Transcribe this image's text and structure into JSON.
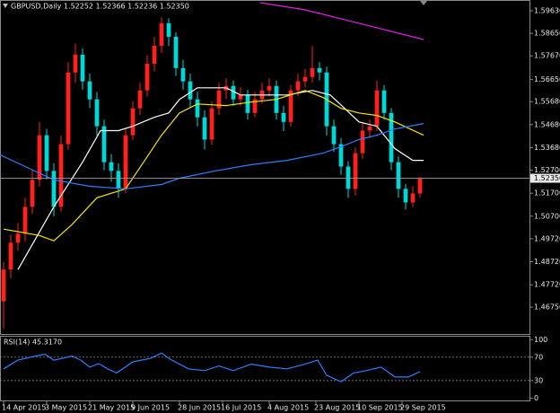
{
  "chart_data": [
    {
      "type": "candlestick",
      "title": "GBPUSD,Daily  1.52252 1.52366 1.52236 1.52350",
      "colors": {
        "up": "#ff2020",
        "down": "#00d8d8"
      },
      "open": [
        1.47,
        1.4838,
        1.4955,
        1.4994,
        1.5111,
        1.5228,
        1.5422,
        1.5267,
        1.5111,
        1.5383,
        1.5695,
        1.5772,
        1.5656,
        1.5578,
        1.5461,
        1.5305,
        1.5267,
        1.5189,
        1.5422,
        1.5539,
        1.5617,
        1.5733,
        1.5811,
        1.5909,
        1.585,
        1.5714,
        1.5656,
        1.5578,
        1.55,
        1.5403,
        1.5539,
        1.5617,
        1.5636,
        1.5578,
        1.5597,
        1.5519,
        1.5578,
        1.5617,
        1.5636,
        1.5519,
        1.548,
        1.5617,
        1.5656,
        1.5675,
        1.5714,
        1.5695,
        1.5461,
        1.5383,
        1.5286,
        1.5189,
        1.5344,
        1.5442,
        1.5461,
        1.5617,
        1.5519,
        1.5305,
        1.5189,
        1.513,
        1.5169
      ],
      "high": [
        1.487,
        1.499,
        1.504,
        1.515,
        1.527,
        1.548,
        1.545,
        1.53,
        1.542,
        1.574,
        1.582,
        1.58,
        1.569,
        1.561,
        1.549,
        1.534,
        1.53,
        1.545,
        1.557,
        1.565,
        1.577,
        1.585,
        1.5935,
        1.593,
        1.587,
        1.575,
        1.569,
        1.561,
        1.553,
        1.557,
        1.565,
        1.567,
        1.566,
        1.563,
        1.562,
        1.561,
        1.565,
        1.567,
        1.566,
        1.555,
        1.564,
        1.569,
        1.571,
        1.581,
        1.574,
        1.572,
        1.549,
        1.541,
        1.531,
        1.537,
        1.548,
        1.549,
        1.566,
        1.564,
        1.554,
        1.533,
        1.521,
        1.52,
        1.524
      ],
      "low": [
        1.458,
        1.48,
        1.492,
        1.496,
        1.508,
        1.52,
        1.523,
        1.507,
        1.509,
        1.536,
        1.565,
        1.562,
        1.554,
        1.542,
        1.527,
        1.522,
        1.515,
        1.517,
        1.54,
        1.551,
        1.559,
        1.57,
        1.578,
        1.581,
        1.568,
        1.562,
        1.554,
        1.546,
        1.536,
        1.538,
        1.551,
        1.558,
        1.555,
        1.555,
        1.549,
        1.55,
        1.556,
        1.559,
        1.549,
        1.544,
        1.546,
        1.559,
        1.563,
        1.565,
        1.566,
        1.542,
        1.535,
        1.525,
        1.515,
        1.516,
        1.532,
        1.541,
        1.544,
        1.549,
        1.527,
        1.515,
        1.51,
        1.511,
        1.515
      ],
      "close": [
        1.4838,
        1.4955,
        1.4994,
        1.5111,
        1.5228,
        1.5422,
        1.5267,
        1.5111,
        1.5383,
        1.5695,
        1.5772,
        1.5656,
        1.5578,
        1.5461,
        1.5305,
        1.5267,
        1.5189,
        1.5422,
        1.5539,
        1.5617,
        1.5733,
        1.5811,
        1.5909,
        1.585,
        1.5714,
        1.5656,
        1.5578,
        1.55,
        1.5403,
        1.5539,
        1.5617,
        1.5636,
        1.5578,
        1.5597,
        1.5519,
        1.5578,
        1.5617,
        1.5636,
        1.5519,
        1.548,
        1.5617,
        1.5656,
        1.5675,
        1.5714,
        1.5695,
        1.5461,
        1.5383,
        1.5286,
        1.5189,
        1.5344,
        1.5442,
        1.5461,
        1.5617,
        1.5519,
        1.5305,
        1.5189,
        1.513,
        1.5169,
        1.5235
      ],
      "series": [
        {
          "color": "#ffffff",
          "x": [
            2,
            7,
            11,
            13.5,
            16,
            18,
            21,
            23,
            24.5,
            27,
            31,
            33,
            36,
            39.5,
            43,
            45.5,
            47.5,
            49.5,
            52,
            54.5,
            57,
            58.5
          ],
          "values": [
            1.4838,
            1.5111,
            1.5305,
            1.5442,
            1.5442,
            1.5461,
            1.55,
            1.5519,
            1.5578,
            1.5628,
            1.5628,
            1.5597,
            1.5597,
            1.5597,
            1.5617,
            1.5597,
            1.5539,
            1.548,
            1.5461,
            1.5364,
            1.5313,
            1.5313
          ]
        },
        {
          "color": "#f5e60a",
          "x": [
            0,
            5,
            7,
            9.5,
            13,
            17,
            19.5,
            22,
            24.5,
            27,
            31,
            34.5,
            38,
            42,
            44.5,
            47,
            49.5,
            52,
            54.5,
            58.5
          ],
          "values": [
            1.5014,
            1.4986,
            1.4963,
            1.5033,
            1.515,
            1.5189,
            1.5305,
            1.5422,
            1.5519,
            1.5558,
            1.5551,
            1.5566,
            1.5578,
            1.5617,
            1.5586,
            1.5539,
            1.5519,
            1.5508,
            1.548,
            1.5422
          ]
        },
        {
          "color": "#2b7fff",
          "x": [
            -0.5,
            3,
            7,
            12,
            17,
            22,
            24.5,
            29.5,
            34.5,
            39.5,
            44.5,
            47,
            49.5,
            52,
            54.5,
            58.5
          ],
          "values": [
            1.5337,
            1.5286,
            1.5228,
            1.52,
            1.5189,
            1.5208,
            1.5235,
            1.5267,
            1.5294,
            1.5313,
            1.5344,
            1.5372,
            1.5403,
            1.5422,
            1.5449,
            1.5473
          ]
        },
        {
          "color": "#e020e0",
          "x": [
            35.75,
            42,
            49.5,
            58.5
          ],
          "values": [
            1.5998,
            1.5967,
            1.5909,
            1.5838
          ]
        }
      ],
      "price_line": {
        "value": 1.5235,
        "label": "1.52350"
      },
      "xlim": [
        -0.5,
        73.25
      ],
      "xticks": [
        {
          "value": 0,
          "label": "14 Apr 2015"
        },
        {
          "value": 6,
          "label": "3 May 2015"
        },
        {
          "value": 12,
          "label": "21 May 2015"
        },
        {
          "value": 18,
          "label": "9 Jun 2015"
        },
        {
          "value": 24.5,
          "label": "28 Jun 2015"
        },
        {
          "value": 30.5,
          "label": "16 Jul 2015"
        },
        {
          "value": 37,
          "label": "4 Aug 2015"
        },
        {
          "value": 43.5,
          "label": "23 Aug 2015"
        },
        {
          "value": 49.5,
          "label": "10 Sep 2015"
        },
        {
          "value": 55.5,
          "label": "29 Sep 2015"
        }
      ],
      "ylim": [
        1.4558,
        1.6006
      ],
      "yticks": [
        {
          "value": 1.5963,
          "label": "1.59630"
        },
        {
          "value": 1.5865,
          "label": "1.58650"
        },
        {
          "value": 1.5767,
          "label": "1.57670"
        },
        {
          "value": 1.5665,
          "label": "1.56650"
        },
        {
          "value": 1.5568,
          "label": "1.55680"
        },
        {
          "value": 1.5468,
          "label": "1.54680"
        },
        {
          "value": 1.5368,
          "label": "1.53680"
        },
        {
          "value": 1.527,
          "label": "1.52700"
        },
        {
          "value": 1.517,
          "label": "1.51700"
        },
        {
          "value": 1.507,
          "label": "1.50700"
        },
        {
          "value": 1.4972,
          "label": "1.49720"
        },
        {
          "value": 1.4872,
          "label": "1.48720"
        },
        {
          "value": 1.4772,
          "label": "1.47720"
        },
        {
          "value": 1.4675,
          "label": "1.46750"
        }
      ]
    },
    {
      "type": "line",
      "title": "RSI(14) 45.3170",
      "color": "#2b7fff",
      "x": [
        0,
        2,
        4.5,
        5.75,
        7,
        8.25,
        9.5,
        10.75,
        12,
        13.25,
        14.5,
        15.75,
        18,
        20.5,
        22,
        23,
        24.5,
        25.75,
        28,
        30,
        32,
        34.5,
        37,
        39.5,
        42,
        43.75,
        45,
        47,
        48.75,
        50.5,
        52.6,
        54.5,
        56.4,
        58
      ],
      "values": [
        50,
        65,
        72,
        75,
        65,
        68,
        72,
        65,
        53,
        59,
        50,
        43,
        62,
        68,
        77,
        68,
        58,
        50,
        47,
        55,
        47,
        58,
        53,
        50,
        58,
        65,
        39,
        28,
        43,
        47,
        53,
        36,
        36,
        45.317
      ],
      "xlim": [
        -0.5,
        73.25
      ],
      "ylim": [
        -4,
        105
      ],
      "yticks": [
        0,
        30,
        70,
        100
      ],
      "levels": [
        30,
        70
      ]
    }
  ]
}
